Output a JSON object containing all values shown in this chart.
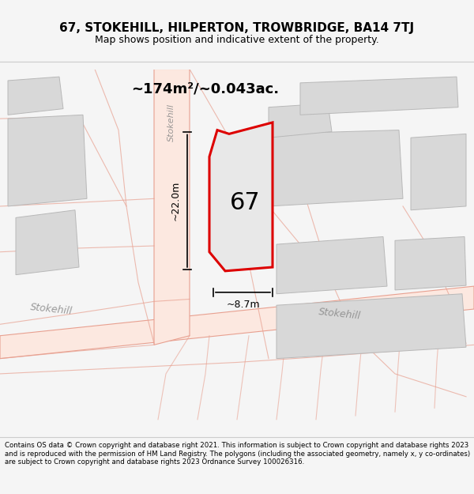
{
  "title": "67, STOKEHILL, HILPERTON, TROWBRIDGE, BA14 7TJ",
  "subtitle": "Map shows position and indicative extent of the property.",
  "footer": "Contains OS data © Crown copyright and database right 2021. This information is subject to Crown copyright and database rights 2023 and is reproduced with the permission of HM Land Registry. The polygons (including the associated geometry, namely x, y co-ordinates) are subject to Crown copyright and database rights 2023 Ordnance Survey 100026316.",
  "bg_color": "#f5f5f5",
  "map_bg": "#ffffff",
  "property_fill": "#e0e0e0",
  "property_outline": "#cc0000",
  "road_color": "#f0c0b0",
  "road_outline": "#e08070",
  "building_fill": "#d8d8d8",
  "building_outline": "#c0c0c0",
  "area_text": "~174m²/~0.043ac.",
  "width_text": "~8.7m",
  "height_text": "~22.0m",
  "number_text": "67",
  "stokehill_road_label": "Stokehill",
  "stokehill_label_left": "Stokehill",
  "stokehill_label_right": "Stokehill"
}
